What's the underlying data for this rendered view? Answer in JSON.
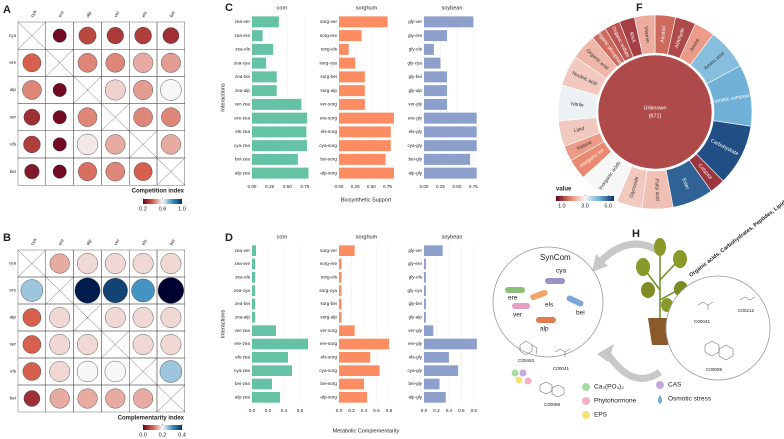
{
  "chart_data": [
    {
      "type": "matrix",
      "label": "A",
      "rows": [
        "cya",
        "ere",
        "alp",
        "ver",
        "els",
        "bei"
      ],
      "columns": [
        "cya",
        "ere",
        "alp",
        "ver",
        "els",
        "bei"
      ],
      "values": [
        [
          null,
          0.22,
          0.35,
          0.32,
          0.33,
          0.3
        ],
        [
          0.4,
          null,
          0.45,
          0.45,
          0.5,
          0.48
        ],
        [
          0.45,
          0.22,
          null,
          0.55,
          0.48,
          0.6
        ],
        [
          0.3,
          0.22,
          0.45,
          null,
          0.45,
          0.45
        ],
        [
          0.33,
          0.22,
          0.58,
          0.5,
          null,
          0.5
        ],
        [
          0.25,
          0.22,
          0.42,
          0.45,
          0.4,
          null
        ]
      ],
      "colorbar_label": "Competition index",
      "clim": [
        0.2,
        1.0
      ],
      "cticks": [
        0.2,
        0.6,
        {
          "value": 1.0,
          "label": "1.0"
        }
      ],
      "colors": [
        "#67001f",
        "#d6604d",
        "#f7f7f7",
        "#4393c3",
        "#053061"
      ]
    },
    {
      "type": "matrix",
      "label": "B",
      "rows": [
        "cya",
        "ere",
        "alp",
        "ver",
        "els",
        "bei"
      ],
      "columns": [
        "cya",
        "ere",
        "alp",
        "ver",
        "els",
        "bei"
      ],
      "values": [
        [
          null,
          0.15,
          0.18,
          0.18,
          0.18,
          0.18
        ],
        [
          0.25,
          null,
          0.42,
          0.38,
          0.3,
          0.45
        ],
        [
          0.1,
          0.18,
          null,
          0.18,
          0.18,
          0.18
        ],
        [
          0.1,
          0.18,
          0.18,
          null,
          0.18,
          0.18
        ],
        [
          0.1,
          0.18,
          0.2,
          0.2,
          null,
          0.25
        ],
        [
          0.05,
          0.15,
          0.15,
          0.15,
          0.15,
          null
        ]
      ],
      "colorbar_label": "Complementarity index",
      "clim": [
        0.0,
        0.4
      ],
      "cticks": [
        {
          "value": 0,
          "label": "0.0"
        },
        0.2,
        0.4
      ],
      "colors": [
        "#67001f",
        "#d6604d",
        "#f7f7f7",
        "#4393c3",
        "#053061"
      ]
    },
    {
      "type": "hbar_group",
      "label": "C",
      "xlabel": "Biosynthetic Support",
      "ylabel": "Interactions",
      "panels": [
        {
          "title": "corn",
          "color": "#66c2a5",
          "xlim": [
            0,
            0.85
          ],
          "xticks": [
            {
              "value": 0,
              "label": "0.00"
            },
            {
              "value": 0.25,
              "label": "0.25"
            },
            {
              "value": 0.5,
              "label": "0.50"
            },
            {
              "value": 0.75,
              "label": "0.75"
            }
          ],
          "categories": [
            "zea-ver",
            "zea-ere",
            "zea-els",
            "zea-cya",
            "zea-bei",
            "zea-alp",
            "ver-zea",
            "ere-zea",
            "els-zea",
            "cya-zea",
            "bei-zea",
            "alp-zea"
          ],
          "values": [
            0.38,
            0.15,
            0.3,
            0.2,
            0.35,
            0.35,
            0.7,
            0.78,
            0.77,
            0.78,
            0.65,
            0.8
          ]
        },
        {
          "title": "sorghum",
          "color": "#fc8d62",
          "xlim": [
            0,
            0.85
          ],
          "xticks": [
            {
              "value": 0,
              "label": "0.00"
            },
            {
              "value": 0.25,
              "label": "0.25"
            },
            {
              "value": 0.5,
              "label": "0.50"
            },
            {
              "value": 0.75,
              "label": "0.75"
            }
          ],
          "categories": [
            "sorg-ver",
            "sorg-ere",
            "sorg-els",
            "sorg-cya",
            "sorg-bei",
            "sorg-alp",
            "ver-sorg",
            "ere-sorg",
            "els-sorg",
            "cya-sorg",
            "bei-sorg",
            "alp-sorg"
          ],
          "values": [
            0.75,
            0.35,
            0.15,
            0.25,
            0.4,
            0.4,
            0.4,
            0.85,
            0.8,
            0.8,
            0.72,
            0.85
          ]
        },
        {
          "title": "soybean",
          "color": "#8da0cb",
          "xlim": [
            0,
            0.85
          ],
          "xticks": [
            {
              "value": 0,
              "label": "0.00"
            },
            {
              "value": 0.25,
              "label": "0.25"
            },
            {
              "value": 0.5,
              "label": "0.50"
            },
            {
              "value": 0.75,
              "label": "0.75"
            }
          ],
          "categories": [
            "gly-ver",
            "gly-ere",
            "gly-els",
            "gly-cya",
            "gly-bei",
            "gly-alp",
            "ver-gly",
            "ere-gly",
            "els-gly",
            "cya-gly",
            "bei-gly",
            "alp-gly"
          ],
          "values": [
            0.75,
            0.35,
            0.15,
            0.25,
            0.35,
            0.35,
            0.35,
            0.8,
            0.8,
            0.8,
            0.7,
            0.8
          ]
        }
      ]
    },
    {
      "type": "hbar_group",
      "label": "D",
      "xlabel": "Metabolic Complementarity",
      "ylabel": "Interactions",
      "panels": [
        {
          "title": "corn",
          "color": "#66c2a5",
          "xlim": [
            0,
            0.75
          ],
          "xticks": [
            {
              "value": 0,
              "label": "0.0"
            },
            0.2,
            0.4,
            0.6
          ],
          "categories": [
            "zea-ver",
            "zea-ere",
            "zea-els",
            "zea-cya",
            "zea-bei",
            "zea-alp",
            "ver-zea",
            "ere-zea",
            "els-zea",
            "cya-zea",
            "bei-zea",
            "alp-zea"
          ],
          "values": [
            0.05,
            0.04,
            0.04,
            0.04,
            0.04,
            0.04,
            0.3,
            0.7,
            0.45,
            0.5,
            0.25,
            0.35
          ]
        },
        {
          "title": "sorghum",
          "color": "#fc8d62",
          "xlim": [
            0,
            0.88
          ],
          "xticks": [
            {
              "value": 0,
              "label": "0.0"
            },
            0.2,
            0.4,
            0.6,
            0.8
          ],
          "categories": [
            "sorg-ver",
            "sorg-ere",
            "sorg-els",
            "sorg-cya",
            "sorg-bei",
            "sorg-alp",
            "ver-sorg",
            "ere-sorg",
            "els-sorg",
            "cya-sorg",
            "bei-sorg",
            "alp-sorg"
          ],
          "values": [
            0.25,
            0.04,
            0.04,
            0.04,
            0.04,
            0.04,
            0.25,
            0.8,
            0.5,
            0.65,
            0.4,
            0.45
          ]
        },
        {
          "title": "soybean",
          "color": "#8da0cb",
          "xlim": [
            0,
            0.9
          ],
          "xticks": [
            {
              "value": 0,
              "label": "0.0"
            },
            0.2,
            0.4,
            0.6,
            0.8
          ],
          "categories": [
            "gly-ver",
            "gly-ere",
            "gly-els",
            "gly-cya",
            "gly-bei",
            "gly-alp",
            "ver-gly",
            "ere-gly",
            "els-gly",
            "cya-gly",
            "bei-gly",
            "alp-gly"
          ],
          "values": [
            0.3,
            0.03,
            0.03,
            0.03,
            0.03,
            0.03,
            0.15,
            0.85,
            0.4,
            0.55,
            0.25,
            0.35
          ]
        }
      ]
    },
    {
      "type": "sunburst",
      "label": "F",
      "center_label": "Unknown",
      "center_count": "(671)",
      "center_value": 1.2,
      "categories": [
        "Alcohol",
        "Aldehyde",
        "Amine",
        "Amino acid",
        "Aromatic compound",
        "Carbohydrate",
        "Cofactor",
        "Ester",
        "Fatty acid",
        "Glycoside",
        "Inorganic acids",
        "Inorganic ion",
        "Ketone",
        "Lipid",
        "Nitrile",
        "Nucleic acid",
        "Organic acid",
        "Organic phosphate",
        "Organic sulfate",
        "RNA",
        "Vitamin"
      ],
      "sizes": [
        4,
        4,
        4,
        8,
        12,
        12,
        3,
        8,
        6,
        5,
        8,
        4,
        3,
        5,
        7,
        6,
        5,
        3,
        3,
        3,
        4
      ],
      "values": [
        1.5,
        1.2,
        2.0,
        4.0,
        4.2,
        5.2,
        1.0,
        5.0,
        2.4,
        2.5,
        3.0,
        1.8,
        2.0,
        2.5,
        3.1,
        2.5,
        2.3,
        1.5,
        1.3,
        1.1,
        2.2
      ],
      "colorbar_label": "value",
      "clim": [
        0.5,
        5.5
      ],
      "cticks": [
        {
          "value": 1,
          "label": "1.0"
        },
        {
          "value": 3,
          "label": "3.0"
        },
        {
          "value": 5,
          "label": "5.0"
        }
      ],
      "colors": [
        "#67001f",
        "#e8846c",
        "#f7f7f7",
        "#6baed6",
        "#08306b"
      ]
    }
  ],
  "diagram": {
    "label": "H",
    "title": "SynCom",
    "members": [
      "cya",
      "ere",
      "els",
      "ver",
      "bei",
      "alp"
    ],
    "exudates": "Organic acids, Carbohydrates, Peptides, Lipids",
    "left_compounds": [
      "C00463",
      "C00041",
      "C00089"
    ],
    "right_compounds": [
      "C00041",
      "C00212",
      "C00089"
    ],
    "legend": [
      "Ca₃(PO₄)₂",
      "Phytohormone",
      "EPS",
      "CAS",
      "Osmotic stress"
    ]
  }
}
